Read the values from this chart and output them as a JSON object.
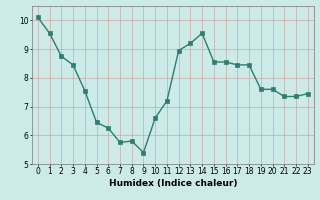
{
  "x": [
    0,
    1,
    2,
    3,
    4,
    5,
    6,
    7,
    8,
    9,
    10,
    11,
    12,
    13,
    14,
    15,
    16,
    17,
    18,
    19,
    20,
    21,
    22,
    23
  ],
  "y": [
    10.1,
    9.55,
    8.75,
    8.45,
    7.55,
    6.45,
    6.25,
    5.75,
    5.8,
    5.4,
    6.6,
    7.2,
    8.95,
    9.2,
    9.55,
    8.55,
    8.55,
    8.45,
    8.45,
    7.6,
    7.6,
    7.35,
    7.35,
    7.45
  ],
  "line_color": "#2e7d6e",
  "marker": "s",
  "marker_size": 2.2,
  "bg_color": "#cceae7",
  "grid_color_major": "#c8a8a8",
  "grid_color_minor": "#c8a8a8",
  "xlabel": "Humidex (Indice chaleur)",
  "xlim": [
    -0.5,
    23.5
  ],
  "ylim": [
    5,
    10.5
  ],
  "yticks": [
    5,
    6,
    7,
    8,
    9,
    10
  ],
  "xticks": [
    0,
    1,
    2,
    3,
    4,
    5,
    6,
    7,
    8,
    9,
    10,
    11,
    12,
    13,
    14,
    15,
    16,
    17,
    18,
    19,
    20,
    21,
    22,
    23
  ],
  "xtick_labels": [
    "0",
    "1",
    "2",
    "3",
    "4",
    "5",
    "6",
    "7",
    "8",
    "9",
    "10",
    "11",
    "12",
    "13",
    "14",
    "15",
    "16",
    "17",
    "18",
    "19",
    "20",
    "21",
    "22",
    "23"
  ],
  "linewidth": 1.0,
  "xlabel_fontsize": 6.5,
  "tick_fontsize": 5.5
}
